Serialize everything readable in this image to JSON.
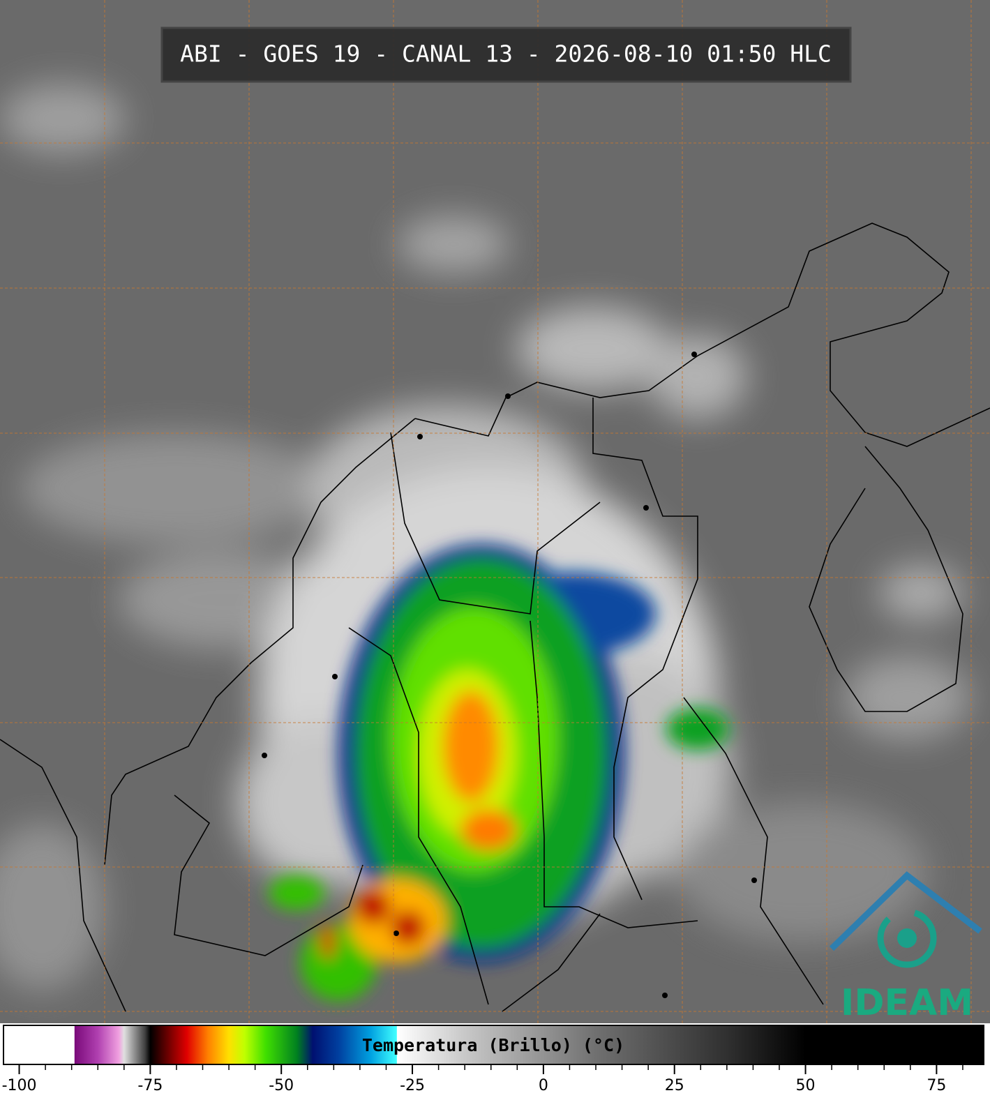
{
  "header": {
    "title": "ABI - GOES 19 - CANAL 13 - 2026-08-10 01:50 HLC"
  },
  "logo": {
    "text": "IDEAM"
  },
  "colorbar": {
    "label": "Temperatura (Brillo) (°C)",
    "xlim": [
      -103,
      84
    ],
    "ticks": [
      -100,
      -75,
      -50,
      -25,
      0,
      25,
      50,
      75
    ],
    "minor_ticks": [
      -95,
      -90,
      -85,
      -80,
      -70,
      -65,
      -60,
      -55,
      -45,
      -40,
      -35,
      -30,
      -20,
      -15,
      -10,
      -5,
      5,
      10,
      15,
      20,
      30,
      35,
      40,
      45,
      55,
      60,
      65,
      70,
      80
    ],
    "color_stops": [
      {
        "value": -103,
        "color": "#ffffff"
      },
      {
        "value": -89.5,
        "color": "#ffffff"
      },
      {
        "value": -89.4,
        "color": "#7a0a7a"
      },
      {
        "value": -85,
        "color": "#b040b0"
      },
      {
        "value": -81,
        "color": "#f0a0e0"
      },
      {
        "value": -80,
        "color": "#e0e0e0"
      },
      {
        "value": -76,
        "color": "#404040"
      },
      {
        "value": -75,
        "color": "#000000"
      },
      {
        "value": -72,
        "color": "#600000"
      },
      {
        "value": -68,
        "color": "#e00000"
      },
      {
        "value": -64,
        "color": "#ff8000"
      },
      {
        "value": -60,
        "color": "#ffe000"
      },
      {
        "value": -57,
        "color": "#c0ff00"
      },
      {
        "value": -53,
        "color": "#40e000"
      },
      {
        "value": -47,
        "color": "#008020"
      },
      {
        "value": -44,
        "color": "#001070"
      },
      {
        "value": -39,
        "color": "#0040a0"
      },
      {
        "value": -33,
        "color": "#00a0e0"
      },
      {
        "value": -28,
        "color": "#40ffff"
      },
      {
        "value": -27.9,
        "color": "#ffffff"
      },
      {
        "value": -15,
        "color": "#c8c8c8"
      },
      {
        "value": 10,
        "color": "#707070"
      },
      {
        "value": 35,
        "color": "#303030"
      },
      {
        "value": 50,
        "color": "#000000"
      },
      {
        "value": 84,
        "color": "#000000"
      }
    ]
  }
}
